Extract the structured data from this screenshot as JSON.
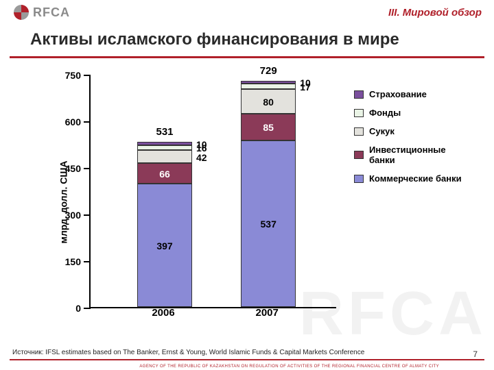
{
  "header": {
    "section_label": "III. Мировой обзор",
    "logo_text": "RFCA",
    "logo_red": "#b0202a",
    "logo_gray": "#9a9a9a"
  },
  "title": "Активы исламского финансирования в мире",
  "chart": {
    "type": "stacked-bar",
    "y_axis_title": "млрд. долл. США",
    "ylim": [
      0,
      750
    ],
    "ytick_step": 150,
    "yticks": [
      0,
      150,
      300,
      450,
      600,
      750
    ],
    "categories": [
      "2006",
      "2007"
    ],
    "series": [
      {
        "key": "insurance",
        "label": "Страхование",
        "color": "#7a4f9d"
      },
      {
        "key": "funds",
        "label": "Фонды",
        "color": "#eaf4e6"
      },
      {
        "key": "sukuk",
        "label": "Сукук",
        "color": "#e3e2dd"
      },
      {
        "key": "inv_banks",
        "label": "Инвестиционные банки",
        "color": "#8b3a58"
      },
      {
        "key": "comm_banks",
        "label": "Коммерческие банки",
        "color": "#8a8ad6"
      }
    ],
    "stack_order_bottom_to_top": [
      "comm_banks",
      "inv_banks",
      "sukuk",
      "funds",
      "insurance"
    ],
    "data": {
      "2006": {
        "comm_banks": 397,
        "inv_banks": 66,
        "sukuk": 42,
        "funds": 16,
        "insurance": 10,
        "total": 531
      },
      "2007": {
        "comm_banks": 537,
        "inv_banks": 85,
        "sukuk": 80,
        "funds": 17,
        "insurance": 10,
        "total": 729
      }
    },
    "bar_width": 0.28,
    "plot_background": "#ffffff",
    "axis_color": "#000000",
    "label_fontsize": 14,
    "title_fontsize": 24
  },
  "footer": {
    "source": "Источник: IFSL estimates based on The Banker, Ernst & Young, World Islamic Funds & Capital Markets Conference",
    "agency": "AGENCY OF THE REPUBLIC OF KAZAKHSTAN ON REGULATION OF ACTIVITIES OF THE REGIONAL FINANCIAL CENTRE OF ALMATY CITY",
    "page": "7"
  },
  "watermark": "RFCA"
}
